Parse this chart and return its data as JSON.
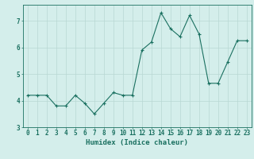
{
  "x": [
    0,
    1,
    2,
    3,
    4,
    5,
    6,
    7,
    8,
    9,
    10,
    11,
    12,
    13,
    14,
    15,
    16,
    17,
    18,
    19,
    20,
    21,
    22,
    23
  ],
  "y": [
    4.2,
    4.2,
    4.2,
    3.8,
    3.8,
    4.2,
    3.9,
    3.5,
    3.9,
    4.3,
    4.2,
    4.2,
    5.9,
    6.2,
    7.3,
    6.7,
    6.4,
    7.2,
    6.5,
    4.65,
    4.65,
    5.45,
    6.25,
    6.25
  ],
  "line_color": "#1a7060",
  "marker": "+",
  "marker_size": 3,
  "bg_color": "#d4eeeb",
  "grid_color": "#b8d8d4",
  "axis_color": "#1a7060",
  "xlabel": "Humidex (Indice chaleur)",
  "xlabel_fontsize": 6.5,
  "tick_fontsize": 5.5,
  "ylim": [
    3.0,
    7.6
  ],
  "yticks": [
    3,
    4,
    5,
    6,
    7
  ],
  "xlim": [
    -0.5,
    23.5
  ],
  "xticks": [
    0,
    1,
    2,
    3,
    4,
    5,
    6,
    7,
    8,
    9,
    10,
    11,
    12,
    13,
    14,
    15,
    16,
    17,
    18,
    19,
    20,
    21,
    22,
    23
  ]
}
